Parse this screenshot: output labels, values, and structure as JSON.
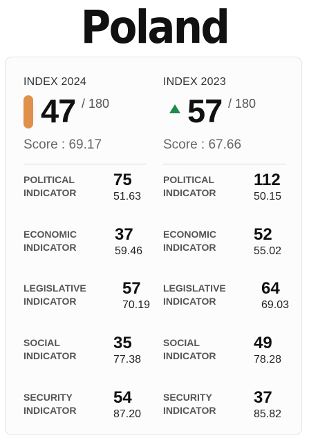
{
  "country": "Poland",
  "current": {
    "index_label": "INDEX 2024",
    "rank": "47",
    "rank_total": "/ 180",
    "score_text": "Score : 69.17",
    "marker": "bar",
    "marker_color": "#e0904a",
    "indicators": [
      {
        "label_line1": "POLITICAL",
        "label_line2": "INDICATOR",
        "rank": "75",
        "score": "51.63"
      },
      {
        "label_line1": "ECONOMIC",
        "label_line2": "INDICATOR",
        "rank": "37",
        "score": "59.46"
      },
      {
        "label_line1": "LEGISLATIVE",
        "label_line2": "INDICATOR",
        "rank": "57",
        "score": "70.19"
      },
      {
        "label_line1": "SOCIAL",
        "label_line2": "INDICATOR",
        "rank": "35",
        "score": "77.38"
      },
      {
        "label_line1": "SECURITY",
        "label_line2": "INDICATOR",
        "rank": "54",
        "score": "87.20"
      }
    ]
  },
  "previous": {
    "index_label": "INDEX 2023",
    "rank": "57",
    "rank_total": "/ 180",
    "score_text": "Score : 67.66",
    "marker": "arrow-up-icon",
    "marker_color": "#1f8a4c",
    "indicators": [
      {
        "label_line1": "POLITICAL",
        "label_line2": "INDICATOR",
        "rank": "112",
        "score": "50.15"
      },
      {
        "label_line1": "ECONOMIC",
        "label_line2": "INDICATOR",
        "rank": "52",
        "score": "55.02"
      },
      {
        "label_line1": "LEGISLATIVE",
        "label_line2": "INDICATOR",
        "rank": "64",
        "score": "69.03"
      },
      {
        "label_line1": "SOCIAL",
        "label_line2": "INDICATOR",
        "rank": "49",
        "score": "78.28"
      },
      {
        "label_line1": "SECURITY",
        "label_line2": "INDICATOR",
        "rank": "37",
        "score": "85.82"
      }
    ]
  }
}
